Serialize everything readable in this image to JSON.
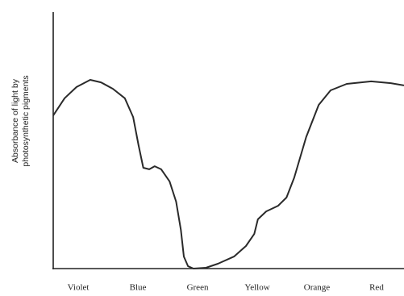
{
  "chart_data": {
    "type": "line",
    "y_label": [
      "Absorbance of light by",
      "photosynthetic pigments"
    ],
    "x": [
      -0.42,
      -0.23,
      -0.03,
      0.2,
      0.38,
      0.58,
      0.78,
      0.92,
      1.01,
      1.09,
      1.19,
      1.28,
      1.39,
      1.53,
      1.64,
      1.72,
      1.77,
      1.84,
      1.93,
      2.14,
      2.34,
      2.61,
      2.81,
      2.95,
      3.01,
      3.15,
      3.35,
      3.49,
      3.62,
      3.82,
      4.03,
      4.23,
      4.5,
      4.91,
      5.24,
      5.46
    ],
    "series": [
      {
        "color": "#2a2a2a",
        "values": [
          59.7,
          66.4,
          70.8,
          73.6,
          72.6,
          70.1,
          66.4,
          59.1,
          48.1,
          39.3,
          38.7,
          39.9,
          38.7,
          34.0,
          26.1,
          15.1,
          4.7,
          0.9,
          0,
          0.3,
          1.9,
          4.7,
          8.8,
          13.5,
          19.2,
          22.3,
          24.5,
          27.7,
          35.5,
          51.3,
          63.8,
          69.5,
          72.0,
          73.0,
          72.3,
          71.4
        ]
      }
    ],
    "xlim": [
      -0.42,
      5.46
    ],
    "xticks": [
      {
        "value": 0,
        "label": "Violet"
      },
      {
        "value": 1,
        "label": "Blue"
      },
      {
        "value": 2,
        "label": "Green"
      },
      {
        "value": 3,
        "label": "Yellow"
      },
      {
        "value": 4,
        "label": "Orange"
      },
      {
        "value": 5,
        "label": "Red"
      }
    ],
    "ylim": [
      0,
      100
    ]
  }
}
